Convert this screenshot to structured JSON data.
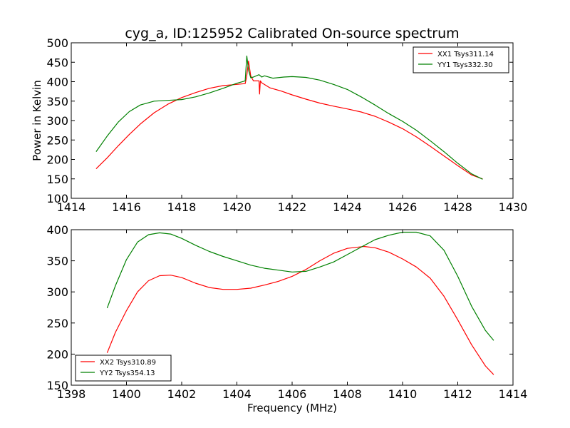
{
  "title": "cyg_a, ID:125952 Calibrated On-source spectrum",
  "colors": {
    "red": "#ff0000",
    "green": "#008000"
  },
  "chart_data": [
    {
      "type": "line",
      "title": "cyg_a, ID:125952 Calibrated On-source spectrum",
      "xlabel": "",
      "ylabel": "Power in Kelvin",
      "xlim": [
        1414,
        1430
      ],
      "ylim": [
        100,
        500
      ],
      "xticks": [
        1414,
        1416,
        1418,
        1420,
        1422,
        1424,
        1426,
        1428,
        1430
      ],
      "yticks": [
        100,
        150,
        200,
        250,
        300,
        350,
        400,
        450,
        500
      ],
      "grid": false,
      "legend_position": "top-right",
      "series": [
        {
          "name": "XX1 Tsys311.14",
          "color": "#ff0000",
          "x": [
            1414.9,
            1415.3,
            1415.7,
            1416.1,
            1416.5,
            1417.0,
            1417.5,
            1418.0,
            1418.5,
            1419.0,
            1419.5,
            1420.0,
            1420.3,
            1420.35,
            1420.42,
            1420.5,
            1420.6,
            1420.8,
            1420.82,
            1420.85,
            1420.9,
            1421.2,
            1421.6,
            1422.0,
            1422.5,
            1423.0,
            1423.5,
            1424.0,
            1424.5,
            1425.0,
            1425.5,
            1426.0,
            1426.5,
            1427.0,
            1427.5,
            1428.0,
            1428.5,
            1428.9
          ],
          "y": [
            176,
            204,
            235,
            264,
            291,
            320,
            342,
            359,
            372,
            383,
            390,
            393,
            395,
            412,
            453,
            415,
            402,
            402,
            368,
            402,
            397,
            384,
            376,
            366,
            355,
            345,
            337,
            330,
            322,
            311,
            296,
            279,
            258,
            234,
            209,
            184,
            160,
            150
          ]
        },
        {
          "name": "YY1 Tsys332.30",
          "color": "#008000",
          "x": [
            1414.9,
            1415.3,
            1415.7,
            1416.1,
            1416.5,
            1417.0,
            1417.5,
            1418.0,
            1418.5,
            1419.0,
            1419.5,
            1420.0,
            1420.3,
            1420.36,
            1420.42,
            1420.5,
            1420.6,
            1420.8,
            1420.9,
            1421.0,
            1421.3,
            1421.7,
            1422.0,
            1422.5,
            1423.0,
            1423.5,
            1424.0,
            1424.5,
            1425.0,
            1425.5,
            1426.0,
            1426.5,
            1427.0,
            1427.5,
            1428.0,
            1428.5,
            1428.9
          ],
          "y": [
            220,
            260,
            296,
            323,
            340,
            350,
            352,
            354,
            361,
            371,
            383,
            396,
            402,
            466,
            430,
            410,
            412,
            418,
            412,
            415,
            409,
            412,
            413,
            411,
            404,
            393,
            380,
            361,
            340,
            318,
            298,
            275,
            248,
            220,
            190,
            163,
            149
          ]
        }
      ]
    },
    {
      "type": "line",
      "title": "",
      "xlabel": "Frequency (MHz)",
      "ylabel": "",
      "xlim": [
        1398,
        1414
      ],
      "ylim": [
        150,
        400
      ],
      "xticks": [
        1398,
        1400,
        1402,
        1404,
        1406,
        1408,
        1410,
        1412,
        1414
      ],
      "yticks": [
        150,
        200,
        250,
        300,
        350,
        400
      ],
      "grid": false,
      "legend_position": "bottom-left",
      "series": [
        {
          "name": "XX2 Tsys310.89",
          "color": "#ff0000",
          "x": [
            1399.3,
            1399.6,
            1400.0,
            1400.4,
            1400.8,
            1401.2,
            1401.6,
            1402.0,
            1402.5,
            1403.0,
            1403.5,
            1404.0,
            1404.5,
            1405.0,
            1405.5,
            1406.0,
            1406.5,
            1407.0,
            1407.5,
            1408.0,
            1408.6,
            1409.0,
            1409.5,
            1410.0,
            1410.5,
            1411.0,
            1411.5,
            1412.0,
            1412.5,
            1413.0,
            1413.3
          ],
          "y": [
            202,
            235,
            270,
            300,
            318,
            326,
            327,
            323,
            314,
            307,
            304,
            304,
            306,
            311,
            317,
            325,
            336,
            350,
            362,
            370,
            373,
            371,
            364,
            353,
            340,
            322,
            293,
            255,
            215,
            181,
            167
          ]
        },
        {
          "name": "YY2 Tsys354.13",
          "color": "#008000",
          "x": [
            1399.3,
            1399.6,
            1400.0,
            1400.4,
            1400.8,
            1401.2,
            1401.6,
            1402.0,
            1402.5,
            1403.0,
            1403.5,
            1404.0,
            1404.5,
            1405.0,
            1405.5,
            1406.0,
            1406.5,
            1407.0,
            1407.5,
            1408.0,
            1408.5,
            1409.0,
            1409.5,
            1410.0,
            1410.5,
            1411.0,
            1411.5,
            1412.0,
            1412.5,
            1413.0,
            1413.3
          ],
          "y": [
            274,
            310,
            352,
            380,
            392,
            395,
            393,
            386,
            375,
            365,
            357,
            350,
            343,
            338,
            335,
            332,
            333,
            340,
            348,
            360,
            372,
            384,
            391,
            396,
            396,
            390,
            367,
            325,
            277,
            238,
            222
          ]
        }
      ]
    }
  ]
}
